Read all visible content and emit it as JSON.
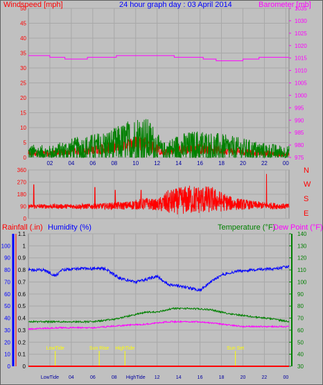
{
  "colors": {
    "background": "#c0c0c0",
    "plot_area": "#c0c0c0",
    "grid": "#a8a8a8",
    "wind_speed": "#ff0000",
    "wind_gust": "#008000",
    "barometer": "#ff00ff",
    "direction": "#ff0000",
    "rainfall": "#ff0000",
    "humidity": "#0000ff",
    "temperature": "#008000",
    "dew_point": "#ff00ff",
    "event_marker": "#ffff00",
    "axis_dark": "#000000"
  },
  "header": {
    "left": "Windspeed [mph]",
    "center": "24 hour graph day : 03 April 2014",
    "right": "Barometer [mb]"
  },
  "middle": {
    "cardinal_letters": [
      "N",
      "W",
      "S",
      "E",
      "N"
    ]
  },
  "bottom": {
    "label_rain": "Rainfall (.in)",
    "label_humidity": "Humidity (%)",
    "label_temperature": "Temperature (°F)",
    "label_dewpoint": "Dew Point (°F)"
  },
  "chart_data": [
    {
      "type": "line",
      "title": "24 hour graph day : 03 April 2014",
      "ylabel": "Windspeed [mph]",
      "y2label": "Barometer [mb]",
      "ylim": [
        0,
        50
      ],
      "y2lim": [
        975,
        1035
      ],
      "yticks": [
        "0",
        "5",
        "10",
        "15",
        "20",
        "25",
        "30",
        "35",
        "40",
        "45",
        "50"
      ],
      "y2ticks": [
        "975",
        "980",
        "985",
        "990",
        "995",
        "1000",
        "1005",
        "1010",
        "1015",
        "1020",
        "1025",
        "1030",
        "1035"
      ],
      "xticks": [
        "02",
        "04",
        "06",
        "08",
        "10",
        "12",
        "14",
        "16",
        "18",
        "20",
        "22",
        "00"
      ],
      "grid": true,
      "series": [
        {
          "name": "Barometer [mb]",
          "axis": "right",
          "points": [
            [
              0,
              1016.0
            ],
            [
              2,
              1016.0
            ],
            [
              2,
              1015.3
            ],
            [
              3.4,
              1015.3
            ],
            [
              3.4,
              1014.6
            ],
            [
              5.5,
              1014.6
            ],
            [
              5.5,
              1015.3
            ],
            [
              8.2,
              1015.3
            ],
            [
              8.2,
              1016.0
            ],
            [
              13.6,
              1016.0
            ],
            [
              13.6,
              1015.3
            ],
            [
              16.3,
              1015.3
            ],
            [
              16.3,
              1014.6
            ],
            [
              17.5,
              1014.6
            ],
            [
              17.5,
              1013.9
            ],
            [
              20.0,
              1013.9
            ],
            [
              20.0,
              1014.6
            ],
            [
              21.5,
              1014.6
            ],
            [
              21.5,
              1015.3
            ],
            [
              24.3,
              1015.3
            ]
          ]
        },
        {
          "name": "Windspeed [mph]",
          "profile": [
            [
              0,
              1.5,
              1.0
            ],
            [
              2,
              1.2,
              1.0
            ],
            [
              4,
              2.0,
              1.3
            ],
            [
              6,
              2.5,
              1.5
            ],
            [
              8,
              3.5,
              2.0
            ],
            [
              9.5,
              4.5,
              2.5
            ],
            [
              10.5,
              5.0,
              2.8
            ],
            [
              11.5,
              4.0,
              2.5
            ],
            [
              12.5,
              1.5,
              1.0
            ],
            [
              14,
              2.5,
              1.5
            ],
            [
              16,
              3.0,
              1.8
            ],
            [
              18,
              2.5,
              1.5
            ],
            [
              20,
              2.0,
              1.3
            ],
            [
              22,
              1.5,
              1.0
            ],
            [
              24,
              1.0,
              0.8
            ]
          ]
        },
        {
          "name": "Gust [mph]",
          "profile": [
            [
              0,
              1.5,
              3.0
            ],
            [
              2,
              1.5,
              2.5
            ],
            [
              4,
              2.5,
              4.0
            ],
            [
              6,
              3.0,
              5.0
            ],
            [
              8,
              4.0,
              6.0
            ],
            [
              9.5,
              5.0,
              8.0
            ],
            [
              10.5,
              6.0,
              9.0
            ],
            [
              11.5,
              5.0,
              7.0
            ],
            [
              12.5,
              2.0,
              3.0
            ],
            [
              14,
              3.0,
              5.0
            ],
            [
              16,
              3.5,
              6.0
            ],
            [
              18,
              3.0,
              5.0
            ],
            [
              20,
              2.5,
              4.0
            ],
            [
              22,
              2.0,
              3.0
            ],
            [
              24,
              1.5,
              2.5
            ]
          ]
        }
      ]
    },
    {
      "type": "line",
      "ylabel": "Wind direction",
      "ylim": [
        0,
        360
      ],
      "yticks": [
        "0",
        "90",
        "180",
        "270",
        "360"
      ],
      "xticks": [
        "02",
        "04",
        "06",
        "08",
        "10",
        "12",
        "14",
        "16",
        "18",
        "20",
        "22",
        "00"
      ],
      "grid": true,
      "series": [
        {
          "name": "Wind direction",
          "profile": [
            [
              0,
              90,
              15
            ],
            [
              6,
              90,
              20
            ],
            [
              9,
              95,
              30
            ],
            [
              11,
              110,
              45
            ],
            [
              12,
              100,
              40
            ],
            [
              13,
              120,
              90
            ],
            [
              15,
              140,
              110
            ],
            [
              17,
              140,
              100
            ],
            [
              19,
              110,
              50
            ],
            [
              21,
              100,
              30
            ],
            [
              24,
              90,
              20
            ]
          ],
          "spikes": [
            [
              0.5,
              250
            ],
            [
              6.2,
              230
            ],
            [
              8.1,
              210
            ],
            [
              10.5,
              210
            ],
            [
              22.2,
              330
            ]
          ]
        }
      ]
    },
    {
      "type": "line",
      "y_left1_label": "Rainfall (.in)",
      "y_left1_lim": [
        0,
        1.0
      ],
      "y_left1_ticks": [
        "0",
        "0.1",
        "0.2",
        "0.3",
        "0.4",
        "0.5",
        "0.6",
        "0.7",
        "0.8",
        "0.9",
        "1",
        "1.1"
      ],
      "y_left2_label": "Humidity (%)",
      "y_left2_lim": [
        0,
        100
      ],
      "y_left2_ticks": [
        "0",
        "10",
        "20",
        "30",
        "40",
        "50",
        "60",
        "70",
        "80",
        "90",
        "100"
      ],
      "y_right_label": "Temperature (°F) / Dew Point (°F)",
      "y_right_lim": [
        30,
        140
      ],
      "y_right_ticks": [
        "30",
        "40",
        "50",
        "60",
        "70",
        "80",
        "90",
        "100",
        "110",
        "120",
        "130",
        "140"
      ],
      "xticks": [
        "LowTide",
        "04",
        "06",
        "08",
        "HighTide",
        "12",
        "14",
        "16",
        "18",
        "20",
        "22",
        "00"
      ],
      "grid": true,
      "events": [
        {
          "label": "LowTide",
          "time": 2.5
        },
        {
          "label": "Sun Rise",
          "time": 6.6
        },
        {
          "label": "HighTide",
          "time": 9.0
        },
        {
          "label": "Sun Set",
          "time": 19.3
        }
      ],
      "series": [
        {
          "name": "Rainfall (.in)",
          "points": [
            [
              0,
              0.0
            ],
            [
              24.3,
              0.0
            ]
          ]
        },
        {
          "name": "Humidity (%)",
          "points": [
            [
              0,
              0.8
            ],
            [
              1.5,
              0.8
            ],
            [
              2.5,
              0.75
            ],
            [
              3.2,
              0.8
            ],
            [
              4.5,
              0.81
            ],
            [
              7.2,
              0.81
            ],
            [
              8.5,
              0.73
            ],
            [
              10,
              0.7
            ],
            [
              11,
              0.72
            ],
            [
              12,
              0.75
            ],
            [
              13,
              0.68
            ],
            [
              14.5,
              0.66
            ],
            [
              16,
              0.63
            ],
            [
              17,
              0.7
            ],
            [
              18,
              0.76
            ],
            [
              19.5,
              0.79
            ],
            [
              21,
              0.8
            ],
            [
              23,
              0.81
            ],
            [
              24.3,
              0.83
            ]
          ]
        },
        {
          "name": "Temperature (°F)",
          "points": [
            [
              0,
              67
            ],
            [
              6,
              67
            ],
            [
              8,
              69
            ],
            [
              9,
              71
            ],
            [
              10,
              73
            ],
            [
              11,
              75
            ],
            [
              12,
              75
            ],
            [
              13.5,
              78
            ],
            [
              15,
              78
            ],
            [
              17,
              77
            ],
            [
              18.5,
              74
            ],
            [
              21,
              71
            ],
            [
              23,
              69
            ],
            [
              24.3,
              67
            ]
          ]
        },
        {
          "name": "Dew Point (°F)",
          "points": [
            [
              0,
              61
            ],
            [
              3,
              62
            ],
            [
              6,
              62
            ],
            [
              9,
              64
            ],
            [
              11,
              65
            ],
            [
              12,
              66
            ],
            [
              13,
              67
            ],
            [
              14.5,
              67
            ],
            [
              16,
              67
            ],
            [
              18,
              65
            ],
            [
              20,
              63
            ],
            [
              24.3,
              63
            ]
          ]
        }
      ]
    }
  ]
}
